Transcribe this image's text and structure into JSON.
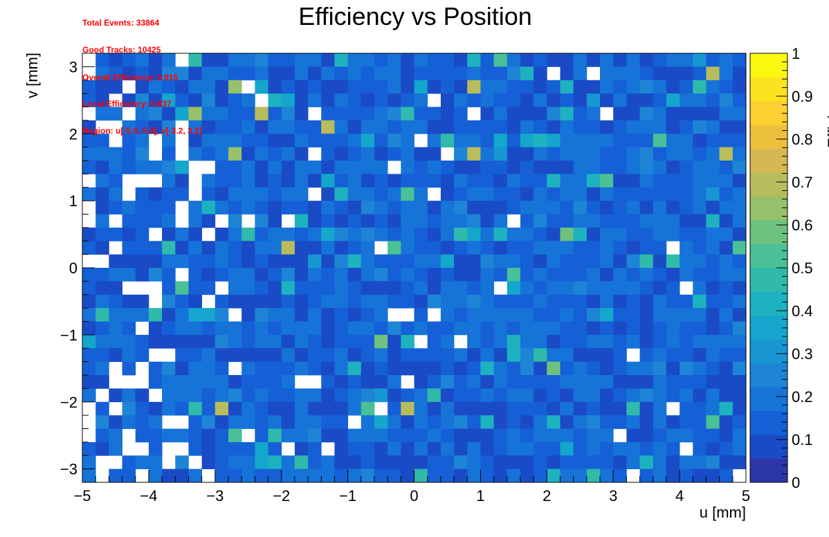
{
  "chart_data": {
    "type": "heatmap",
    "title": "Efficiency vs Position",
    "xlabel": "u [mm]",
    "ylabel": "v [mm]",
    "zlabel": "Efficiency",
    "xlim": [
      -5,
      5
    ],
    "ylim": [
      -3.2,
      3.2
    ],
    "zlim": [
      0,
      1
    ],
    "x_bins": 50,
    "y_bins": 32,
    "x_ticks": [
      "−5",
      "−4",
      "−3",
      "−2",
      "−1",
      "0",
      "1",
      "2",
      "3",
      "4",
      "5"
    ],
    "y_ticks": [
      "−3",
      "−2",
      "−1",
      "0",
      "1",
      "2",
      "3"
    ],
    "z_ticks": [
      "0",
      "0.1",
      "0.2",
      "0.3",
      "0.4",
      "0.5",
      "0.6",
      "0.7",
      "0.8",
      "0.9",
      "1"
    ],
    "palette": [
      "#2d36a6",
      "#1a4bc6",
      "#1560d6",
      "#1673d8",
      "#1d84d6",
      "#1896d2",
      "#14a6cc",
      "#1eb2c0",
      "#2fbaab",
      "#49c096",
      "#6dc27f",
      "#96c06a",
      "#b8bc5c",
      "#d6b853",
      "#edc03c",
      "#fbd030",
      "#fbe41f",
      "#f9f90f"
    ],
    "empty_fraction_note_free": true,
    "stats": [
      "Total Events: 33864",
      "Good Tracks: 10425",
      "Overall Efficiency: 0.915",
      "Local Efficiency: 0.637",
      "Region: u[-5.0, 5.0], v[-3.2, 3.2]"
    ],
    "typical_efficiency": 0.15,
    "efficiency_range_observed": [
      0.0,
      0.72
    ]
  }
}
